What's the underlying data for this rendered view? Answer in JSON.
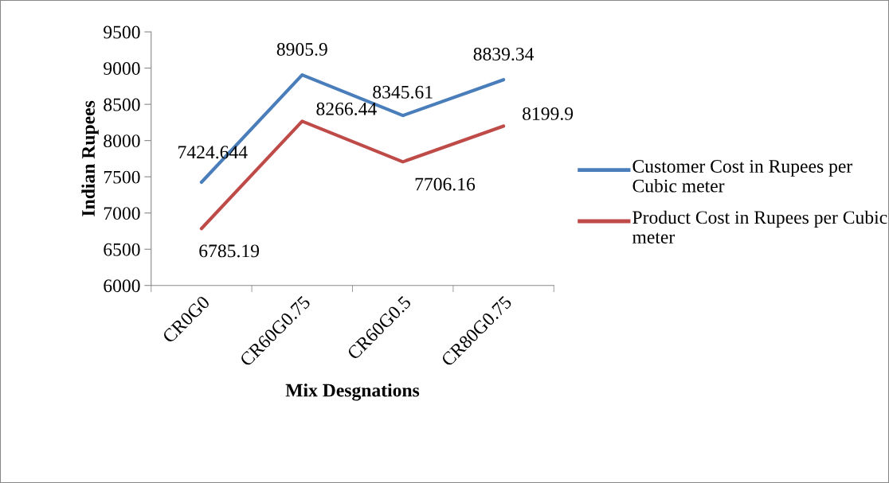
{
  "chart_data": {
    "type": "line",
    "xlabel": "Mix Desgnations",
    "ylabel": "Indian Rupees",
    "categories": [
      "CR0G0",
      "CR60G0.75",
      "CR60G0.5",
      "CR80G0.75"
    ],
    "series": [
      {
        "name": "Customer Cost in Rupees per Cubic meter",
        "color": "#4a7ebb",
        "values": [
          7424.644,
          8905.9,
          8345.61,
          8839.34
        ]
      },
      {
        "name": "Product Cost in Rupees per Cubic meter",
        "color": "#be4b48",
        "values": [
          6785.19,
          8266.44,
          7706.16,
          8199.9
        ]
      }
    ],
    "ylim": [
      6000,
      9500
    ],
    "yticks": [
      6000,
      6500,
      7000,
      7500,
      8000,
      8500,
      9000,
      9500
    ],
    "grid": false,
    "legend": "right",
    "marker": "none",
    "line_style": "solid",
    "data_labels": true
  }
}
